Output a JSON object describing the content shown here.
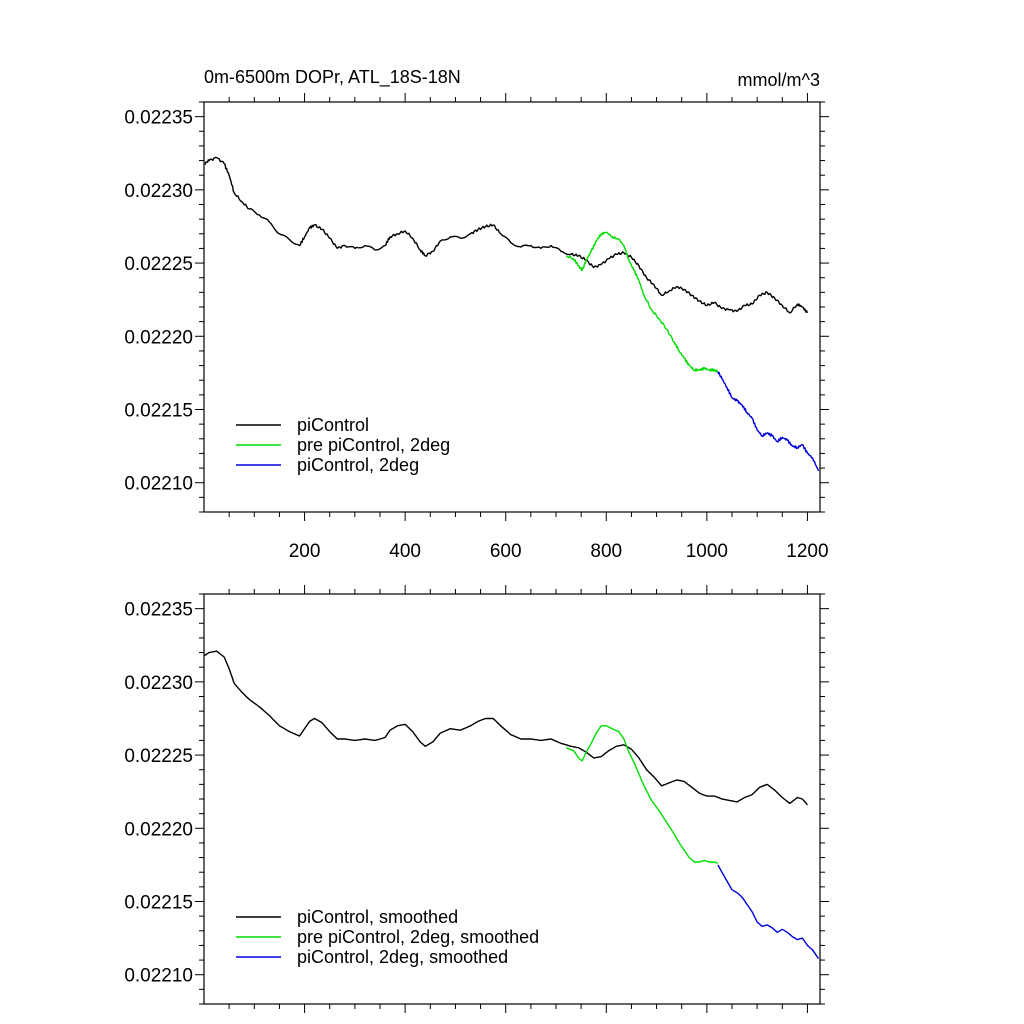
{
  "chart_data": [
    {
      "type": "line",
      "title": "0m-6500m DOPr, ATL_18S-18N",
      "units": "mmol/m^3",
      "xlim": [
        0,
        1225
      ],
      "ylim": [
        0.02208,
        0.02236
      ],
      "x_ticks": [
        "200",
        "400",
        "600",
        "800",
        "1000",
        "1200"
      ],
      "y_ticks": [
        "0.02210",
        "0.02215",
        "0.02220",
        "0.02225",
        "0.02230",
        "0.02235"
      ],
      "grid": false,
      "legend_position": "bottom-left",
      "series": [
        {
          "name": "piControl",
          "color": "#000000",
          "x": [
            1,
            10,
            25,
            40,
            50,
            60,
            75,
            90,
            110,
            130,
            150,
            170,
            190,
            200,
            210,
            220,
            235,
            250,
            265,
            280,
            300,
            320,
            340,
            360,
            370,
            385,
            400,
            415,
            430,
            440,
            455,
            470,
            490,
            510,
            530,
            545,
            560,
            575,
            590,
            610,
            630,
            650,
            670,
            690,
            710,
            730,
            745,
            760,
            775,
            790,
            805,
            820,
            835,
            850,
            865,
            880,
            895,
            910,
            925,
            940,
            955,
            970,
            985,
            1000,
            1015,
            1030,
            1045,
            1060,
            1075,
            1090,
            1105,
            1120,
            1135,
            1150,
            1165,
            1180,
            1190,
            1200
          ],
          "y": [
            0.022318,
            0.02232,
            0.022322,
            0.022318,
            0.02231,
            0.022298,
            0.022292,
            0.022287,
            0.022283,
            0.022278,
            0.02227,
            0.022266,
            0.022262,
            0.022268,
            0.022274,
            0.022276,
            0.022273,
            0.022267,
            0.02226,
            0.022262,
            0.02226,
            0.022262,
            0.022259,
            0.022262,
            0.022268,
            0.02227,
            0.022272,
            0.022267,
            0.022259,
            0.022255,
            0.022258,
            0.022265,
            0.022268,
            0.022267,
            0.02227,
            0.022273,
            0.022275,
            0.022276,
            0.02227,
            0.022264,
            0.022261,
            0.022262,
            0.02226,
            0.022262,
            0.022258,
            0.022256,
            0.022255,
            0.022252,
            0.022247,
            0.022249,
            0.022253,
            0.022256,
            0.022257,
            0.022254,
            0.022248,
            0.02224,
            0.022235,
            0.022228,
            0.022231,
            0.022234,
            0.022232,
            0.022228,
            0.022224,
            0.022221,
            0.022223,
            0.022219,
            0.022218,
            0.022217,
            0.022221,
            0.022222,
            0.022228,
            0.02223,
            0.022226,
            0.022221,
            0.022216,
            0.022222,
            0.02222,
            0.022216
          ]
        },
        {
          "name": "pre piControl, 2deg",
          "color": "#00dd00",
          "x": [
            720,
            735,
            745,
            752,
            760,
            770,
            780,
            790,
            800,
            812,
            825,
            835,
            845,
            855,
            865,
            875,
            890,
            905,
            920,
            935,
            945,
            955,
            965,
            975,
            985,
            995,
            1005,
            1015,
            1022
          ],
          "y": [
            0.022255,
            0.022253,
            0.022248,
            0.022245,
            0.022252,
            0.022258,
            0.022265,
            0.02227,
            0.022271,
            0.022268,
            0.022266,
            0.022262,
            0.022252,
            0.022245,
            0.022238,
            0.022228,
            0.022218,
            0.022212,
            0.022205,
            0.022196,
            0.02219,
            0.022185,
            0.02218,
            0.022177,
            0.022177,
            0.022178,
            0.022177,
            0.022177,
            0.022176
          ]
        },
        {
          "name": "piControl, 2deg",
          "color": "#0000dd",
          "x": [
            1022,
            1030,
            1040,
            1050,
            1060,
            1070,
            1080,
            1090,
            1100,
            1110,
            1120,
            1130,
            1140,
            1150,
            1160,
            1170,
            1180,
            1190,
            1200,
            1210,
            1222
          ],
          "y": [
            0.022176,
            0.022171,
            0.022165,
            0.022158,
            0.022156,
            0.022153,
            0.022148,
            0.022144,
            0.022136,
            0.022132,
            0.022134,
            0.022132,
            0.022128,
            0.022131,
            0.022129,
            0.022125,
            0.022124,
            0.022126,
            0.02212,
            0.022117,
            0.022108
          ]
        }
      ]
    },
    {
      "type": "line",
      "title": "",
      "xlim": [
        0,
        1225
      ],
      "ylim": [
        0.02208,
        0.02236
      ],
      "x_ticks": [],
      "y_ticks": [
        "0.02210",
        "0.02215",
        "0.02220",
        "0.02225",
        "0.02230",
        "0.02235"
      ],
      "grid": false,
      "legend_position": "bottom-left",
      "series": [
        {
          "name": "piControl, smoothed",
          "color": "#000000",
          "x": [
            1,
            10,
            25,
            40,
            50,
            60,
            75,
            90,
            110,
            130,
            150,
            170,
            190,
            200,
            210,
            220,
            235,
            250,
            265,
            280,
            300,
            320,
            340,
            360,
            370,
            385,
            400,
            415,
            430,
            440,
            455,
            470,
            490,
            510,
            530,
            545,
            560,
            575,
            590,
            610,
            630,
            650,
            670,
            690,
            710,
            730,
            745,
            760,
            775,
            790,
            805,
            820,
            835,
            850,
            865,
            880,
            895,
            910,
            925,
            940,
            955,
            970,
            985,
            1000,
            1015,
            1030,
            1045,
            1060,
            1075,
            1090,
            1105,
            1120,
            1135,
            1150,
            1165,
            1180,
            1190,
            1200
          ],
          "y": [
            0.022318,
            0.02232,
            0.022321,
            0.022317,
            0.022309,
            0.022299,
            0.022293,
            0.022288,
            0.022283,
            0.022277,
            0.02227,
            0.022266,
            0.022263,
            0.022268,
            0.022273,
            0.022275,
            0.022272,
            0.022266,
            0.022261,
            0.022261,
            0.02226,
            0.022261,
            0.02226,
            0.022262,
            0.022267,
            0.02227,
            0.022271,
            0.022266,
            0.022259,
            0.022256,
            0.022259,
            0.022265,
            0.022268,
            0.022267,
            0.02227,
            0.022273,
            0.022275,
            0.022275,
            0.02227,
            0.022264,
            0.022261,
            0.022261,
            0.02226,
            0.022261,
            0.022258,
            0.022256,
            0.022255,
            0.022252,
            0.022248,
            0.022249,
            0.022253,
            0.022256,
            0.022257,
            0.022254,
            0.022248,
            0.02224,
            0.022235,
            0.022229,
            0.022231,
            0.022233,
            0.022232,
            0.022228,
            0.022224,
            0.022222,
            0.022222,
            0.02222,
            0.022219,
            0.022218,
            0.022221,
            0.022223,
            0.022228,
            0.02223,
            0.022226,
            0.022221,
            0.022217,
            0.022221,
            0.02222,
            0.022216
          ]
        },
        {
          "name": "pre piControl, 2deg, smoothed",
          "color": "#00dd00",
          "x": [
            720,
            735,
            745,
            752,
            760,
            770,
            780,
            790,
            800,
            812,
            825,
            835,
            845,
            855,
            865,
            875,
            890,
            905,
            920,
            935,
            945,
            955,
            965,
            975,
            985,
            995,
            1005,
            1015,
            1022
          ],
          "y": [
            0.022255,
            0.022253,
            0.022248,
            0.022246,
            0.022252,
            0.022258,
            0.022265,
            0.02227,
            0.02227,
            0.022268,
            0.022266,
            0.022261,
            0.022252,
            0.022245,
            0.022237,
            0.022229,
            0.022219,
            0.022212,
            0.022204,
            0.022196,
            0.02219,
            0.022185,
            0.02218,
            0.022177,
            0.022177,
            0.022178,
            0.022177,
            0.022177,
            0.022176
          ]
        },
        {
          "name": "piControl, 2deg, smoothed",
          "color": "#0000dd",
          "x": [
            1022,
            1030,
            1040,
            1050,
            1060,
            1070,
            1080,
            1090,
            1100,
            1110,
            1120,
            1130,
            1140,
            1150,
            1160,
            1170,
            1180,
            1190,
            1200,
            1210,
            1222
          ],
          "y": [
            0.022175,
            0.02217,
            0.022164,
            0.022158,
            0.022156,
            0.022153,
            0.022148,
            0.022143,
            0.022136,
            0.022133,
            0.022134,
            0.022132,
            0.022129,
            0.022131,
            0.022129,
            0.022126,
            0.022124,
            0.022125,
            0.02212,
            0.022117,
            0.022111
          ]
        }
      ]
    }
  ]
}
